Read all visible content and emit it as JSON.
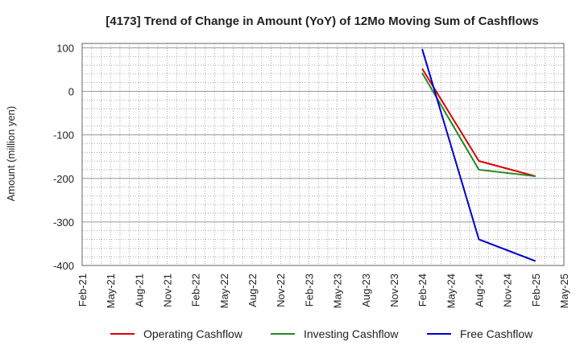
{
  "chart_data": {
    "type": "line",
    "title": "[4173]  Trend of Change in Amount (YoY) of 12Mo Moving Sum of Cashflows",
    "ylabel": "Amount (million yen)",
    "xlabel": "",
    "ylim": [
      -400,
      110
    ],
    "yticks": [
      100,
      0,
      -100,
      -200,
      -300,
      -400
    ],
    "ytick_labels": [
      "100",
      "0",
      "-100",
      "-200",
      "-300",
      "-400"
    ],
    "x_tick_labels": [
      "Feb-21",
      "May-21",
      "Aug-21",
      "Nov-21",
      "Feb-22",
      "May-22",
      "Aug-22",
      "Nov-22",
      "Feb-23",
      "May-23",
      "Aug-23",
      "Nov-23",
      "Feb-24",
      "May-24",
      "Aug-24",
      "Nov-24",
      "Feb-25",
      "May-25"
    ],
    "x_points": [
      "Feb-24",
      "Aug-24",
      "Feb-25"
    ],
    "grid": true,
    "legend_position": "bottom",
    "series": [
      {
        "name": "Operating Cashflow",
        "color": "#dd0000",
        "values": [
          52,
          -160,
          -195
        ]
      },
      {
        "name": "Investing Cashflow",
        "color": "#228b22",
        "values": [
          42,
          -180,
          -195
        ]
      },
      {
        "name": "Free Cashflow",
        "color": "#0000cc",
        "values": [
          97,
          -340,
          -390
        ]
      }
    ]
  }
}
